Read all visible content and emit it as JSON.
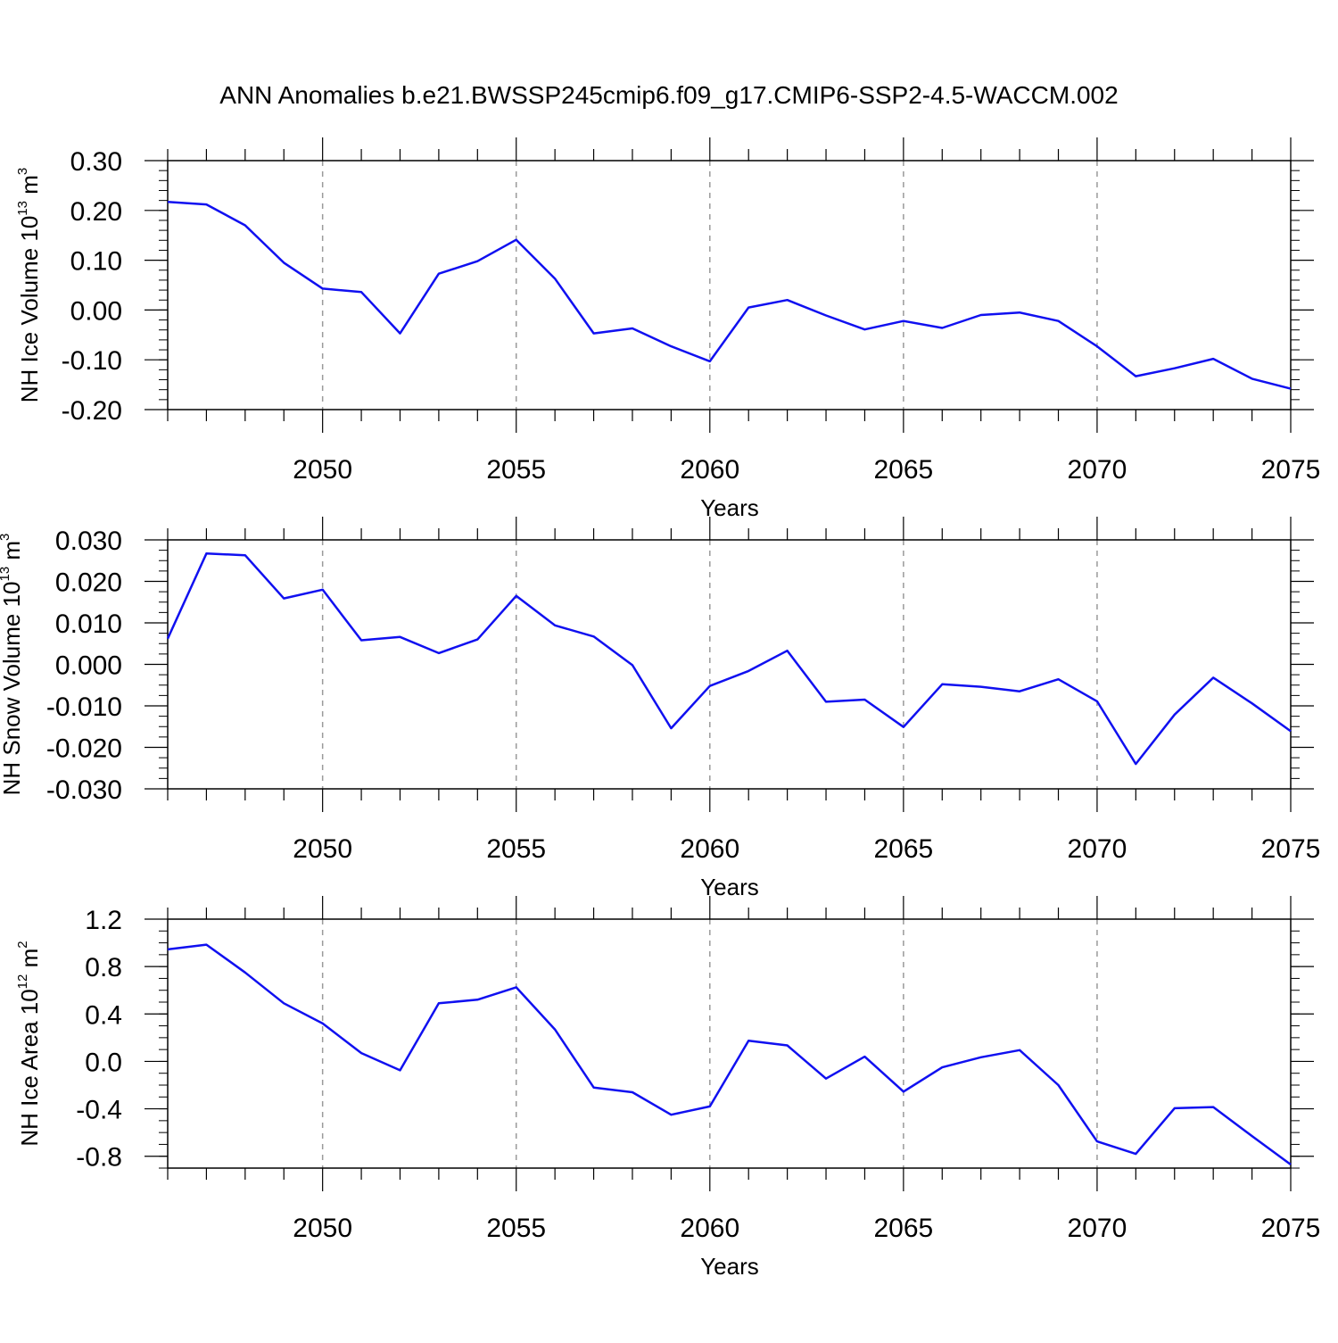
{
  "title": "ANN Anomalies b.e21.BWSSP245cmip6.f09_g17.CMIP6-SSP2-4.5-WACCM.002",
  "colors": {
    "line": "#1010f0",
    "axis": "#000000",
    "grid": "#9a9a9a"
  },
  "chart_data": [
    {
      "type": "line",
      "xlabel": "Years",
      "ylabel": {
        "prefix": "NH Ice Volume 10",
        "exponent": "13",
        "unit": " m",
        "unit_exp": "3"
      },
      "xlim": [
        2046,
        2075
      ],
      "ylim": [
        -0.2,
        0.3
      ],
      "xticks": [
        2050,
        2055,
        2060,
        2065,
        2070,
        2075
      ],
      "xtick_labels": [
        "2050",
        "2055",
        "2060",
        "2065",
        "2070",
        "2075"
      ],
      "yticks": [
        -0.2,
        -0.1,
        0.0,
        0.1,
        0.2,
        0.3
      ],
      "ytick_labels": [
        "-0.20",
        "-0.10",
        "0.00",
        "0.10",
        "0.20",
        "0.30"
      ],
      "y_minor_step": 0.02,
      "grid": "vertical dashed at major x ticks",
      "x": [
        2046,
        2047,
        2048,
        2049,
        2050,
        2051,
        2052,
        2053,
        2054,
        2055,
        2056,
        2057,
        2058,
        2059,
        2060,
        2061,
        2062,
        2063,
        2064,
        2065,
        2066,
        2067,
        2068,
        2069,
        2070,
        2071,
        2072,
        2073,
        2074,
        2075
      ],
      "values": [
        0.217,
        0.212,
        0.17,
        0.095,
        0.043,
        0.036,
        -0.047,
        0.073,
        0.098,
        0.141,
        0.063,
        -0.047,
        -0.037,
        -0.073,
        -0.103,
        0.005,
        0.02,
        -0.011,
        -0.039,
        -0.022,
        -0.036,
        -0.01,
        -0.005,
        -0.022,
        -0.073,
        -0.133,
        -0.117,
        -0.098,
        -0.138,
        -0.158
      ]
    },
    {
      "type": "line",
      "xlabel": "Years",
      "ylabel": {
        "prefix": "NH Snow Volume 10",
        "exponent": "13",
        "unit": " m",
        "unit_exp": "3"
      },
      "xlim": [
        2046,
        2075
      ],
      "ylim": [
        -0.03,
        0.03
      ],
      "xticks": [
        2050,
        2055,
        2060,
        2065,
        2070,
        2075
      ],
      "xtick_labels": [
        "2050",
        "2055",
        "2060",
        "2065",
        "2070",
        "2075"
      ],
      "yticks": [
        -0.03,
        -0.02,
        -0.01,
        0.0,
        0.01,
        0.02,
        0.03
      ],
      "ytick_labels": [
        "-0.030",
        "-0.020",
        "-0.010",
        "0.000",
        "0.010",
        "0.020",
        "0.030"
      ],
      "y_minor_step": 0.0025,
      "grid": "vertical dashed at major x ticks",
      "x": [
        2046,
        2047,
        2048,
        2049,
        2050,
        2051,
        2052,
        2053,
        2054,
        2055,
        2056,
        2057,
        2058,
        2059,
        2060,
        2061,
        2062,
        2063,
        2064,
        2065,
        2066,
        2067,
        2068,
        2069,
        2070,
        2071,
        2072,
        2073,
        2074,
        2075
      ],
      "values": [
        0.0062,
        0.0267,
        0.0263,
        0.0159,
        0.018,
        0.0058,
        0.0066,
        0.0027,
        0.006,
        0.0165,
        0.0094,
        0.0067,
        -0.0002,
        -0.0154,
        -0.0052,
        -0.0016,
        0.0033,
        -0.009,
        -0.0085,
        -0.0151,
        -0.0048,
        -0.0054,
        -0.0065,
        -0.0036,
        -0.0089,
        -0.024,
        -0.0121,
        -0.0032,
        -0.0094,
        -0.0161
      ]
    },
    {
      "type": "line",
      "xlabel": "Years",
      "ylabel": {
        "prefix": "NH Ice Area 10",
        "exponent": "12",
        "unit": " m",
        "unit_exp": "2"
      },
      "xlim": [
        2046,
        2075
      ],
      "ylim": [
        -0.9,
        1.2
      ],
      "xticks": [
        2050,
        2055,
        2060,
        2065,
        2070,
        2075
      ],
      "xtick_labels": [
        "2050",
        "2055",
        "2060",
        "2065",
        "2070",
        "2075"
      ],
      "yticks": [
        -0.8,
        -0.4,
        0.0,
        0.4,
        0.8,
        1.2
      ],
      "ytick_labels": [
        "-0.8",
        "-0.4",
        "0.0",
        "0.4",
        "0.8",
        "1.2"
      ],
      "y_minor_step": 0.1,
      "grid": "vertical dashed at major x ticks",
      "x": [
        2046,
        2047,
        2048,
        2049,
        2050,
        2051,
        2052,
        2053,
        2054,
        2055,
        2056,
        2057,
        2058,
        2059,
        2060,
        2061,
        2062,
        2063,
        2064,
        2065,
        2066,
        2067,
        2068,
        2069,
        2070,
        2071,
        2072,
        2073,
        2074,
        2075
      ],
      "values": [
        0.945,
        0.985,
        0.75,
        0.49,
        0.32,
        0.07,
        -0.075,
        0.49,
        0.52,
        0.625,
        0.27,
        -0.22,
        -0.26,
        -0.45,
        -0.38,
        0.175,
        0.135,
        -0.145,
        0.04,
        -0.255,
        -0.05,
        0.035,
        0.095,
        -0.2,
        -0.675,
        -0.78,
        -0.395,
        -0.385,
        -0.63,
        -0.87
      ]
    }
  ]
}
